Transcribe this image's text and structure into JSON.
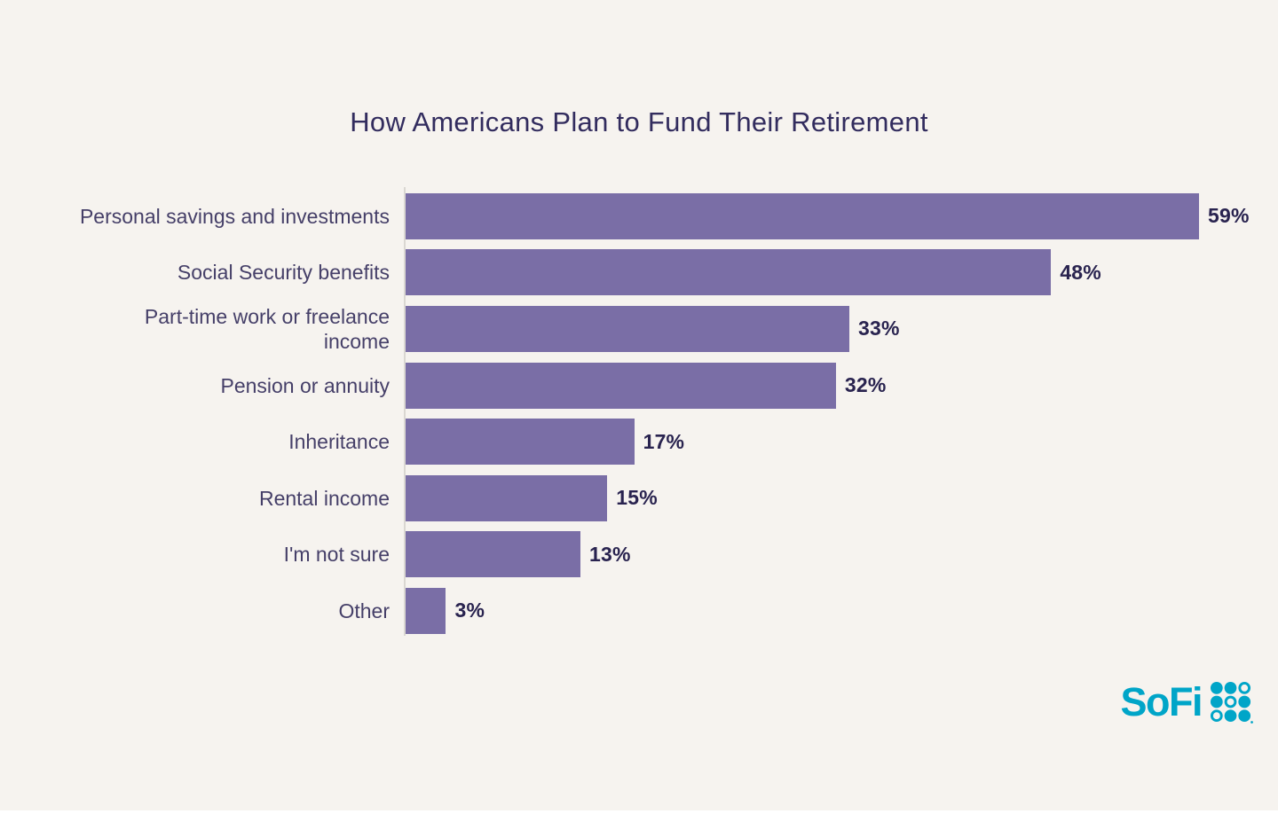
{
  "page": {
    "background_color": "#F6F3EF"
  },
  "chart_data": {
    "type": "bar",
    "orientation": "horizontal",
    "title": "How Americans Plan to Fund Their Retirement",
    "categories": [
      "Personal savings and investments",
      "Social Security benefits",
      "Part-time work or freelance\nincome",
      "Pension or annuity",
      "Inheritance",
      "Rental income",
      "I'm not sure",
      "Other"
    ],
    "values": [
      59,
      48,
      33,
      32,
      17,
      15,
      13,
      3
    ],
    "value_labels": [
      "59%",
      "48%",
      "33%",
      "32%",
      "17%",
      "15%",
      "13%",
      "3%"
    ],
    "xlabel": "",
    "ylabel": "",
    "xlim": [
      0,
      59
    ],
    "grid": false,
    "legend": false,
    "bar_color": "#7A6EA6",
    "label_color": "#453F68",
    "value_color": "#29234F",
    "title_color": "#322C5E",
    "axis_line_color": "#DAD7D2"
  },
  "branding": {
    "logo_text": "SoFi",
    "logo_color": "#00A5C8"
  }
}
